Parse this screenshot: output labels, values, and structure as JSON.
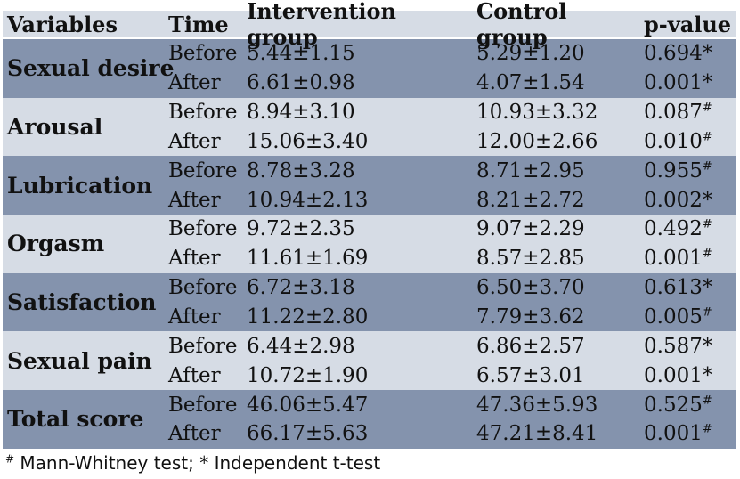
{
  "header": {
    "variables": "Variables",
    "time": "Time",
    "intervention": "Intervention group",
    "control": "Control group",
    "pvalue": "p-value"
  },
  "rows": [
    {
      "variable": "Sexual desire",
      "shade": "dark",
      "before": {
        "time": "Before",
        "intervention": "5.44±1.15",
        "control": "5.29±1.20",
        "p": "0.694",
        "mark": "*"
      },
      "after": {
        "time": "After",
        "intervention": "6.61±0.98",
        "control": "4.07±1.54",
        "p": "0.001",
        "mark": "*"
      }
    },
    {
      "variable": "Arousal",
      "shade": "light",
      "before": {
        "time": "Before",
        "intervention": "8.94±3.10",
        "control": "10.93±3.32",
        "p": "0.087",
        "mark": "#"
      },
      "after": {
        "time": "After",
        "intervention": "15.06±3.40",
        "control": "12.00±2.66",
        "p": "0.010",
        "mark": "#"
      }
    },
    {
      "variable": "Lubrication",
      "shade": "dark",
      "before": {
        "time": "Before",
        "intervention": "8.78±3.28",
        "control": "8.71±2.95",
        "p": "0.955",
        "mark": "#"
      },
      "after": {
        "time": "After",
        "intervention": "10.94±2.13",
        "control": "8.21±2.72",
        "p": "0.002",
        "mark": "*"
      }
    },
    {
      "variable": "Orgasm",
      "shade": "light",
      "before": {
        "time": "Before",
        "intervention": "9.72±2.35",
        "control": "9.07±2.29",
        "p": "0.492",
        "mark": "#"
      },
      "after": {
        "time": "After",
        "intervention": "11.61±1.69",
        "control": "8.57±2.85",
        "p": "0.001",
        "mark": "#"
      }
    },
    {
      "variable": "Satisfaction",
      "shade": "dark",
      "before": {
        "time": "Before",
        "intervention": "6.72±3.18",
        "control": "6.50±3.70",
        "p": "0.613",
        "mark": "*"
      },
      "after": {
        "time": "After",
        "intervention": "11.22±2.80",
        "control": "7.79±3.62",
        "p": "0.005",
        "mark": "#"
      }
    },
    {
      "variable": "Sexual pain",
      "shade": "light",
      "before": {
        "time": "Before",
        "intervention": "6.44±2.98",
        "control": "6.86±2.57",
        "p": "0.587",
        "mark": "*"
      },
      "after": {
        "time": "After",
        "intervention": "10.72±1.90",
        "control": "6.57±3.01",
        "p": "0.001",
        "mark": "*"
      }
    },
    {
      "variable": "Total score",
      "shade": "dark",
      "before": {
        "time": "Before",
        "intervention": "46.06±5.47",
        "control": "47.36±5.93",
        "p": "0.525",
        "mark": "#"
      },
      "after": {
        "time": "After",
        "intervention": "66.17±5.63",
        "control": "47.21±8.41",
        "p": "0.001",
        "mark": "#"
      }
    }
  ],
  "footnote": {
    "hash_mark": "#",
    "hash_text": " Mann-Whitney test; ",
    "star_mark": "*",
    "star_text": " Independent t-test"
  },
  "colors": {
    "dark_row": "#8493ad",
    "light_row": "#d6dce5"
  }
}
